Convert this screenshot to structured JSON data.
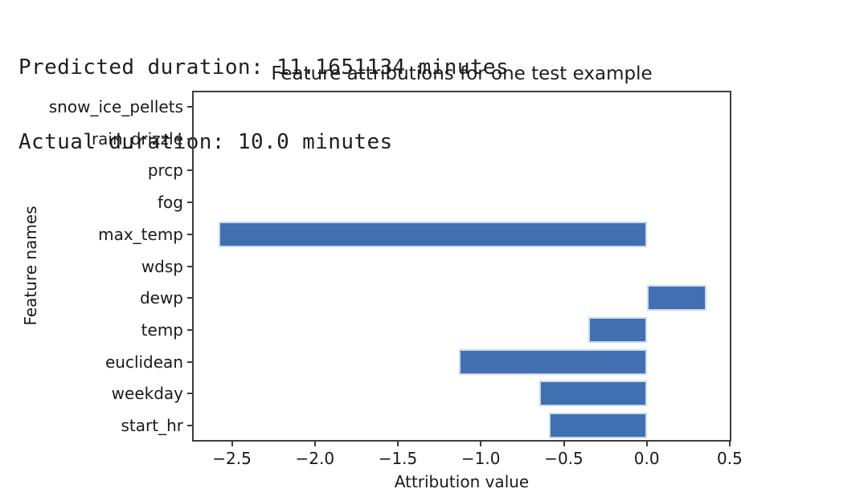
{
  "output_lines": [
    "Predicted duration: 11.1651134 minutes",
    "Actual duration: 10.0 minutes"
  ],
  "chart_data": {
    "type": "bar",
    "orientation": "horizontal",
    "title": "Feature attributions for one test example",
    "xlabel": "Attribution value",
    "ylabel": "Feature names",
    "categories": [
      "snow_ice_pellets",
      "rain_drizzle",
      "prcp",
      "fog",
      "max_temp",
      "wdsp",
      "dewp",
      "temp",
      "euclidean",
      "weekday",
      "start_hr"
    ],
    "values": [
      0,
      0,
      0,
      0,
      -2.58,
      0,
      0.36,
      -0.35,
      -1.13,
      -0.65,
      -0.59
    ],
    "xlim": [
      -2.74,
      0.51
    ],
    "x_ticks": [
      -2.5,
      -2.0,
      -1.5,
      -1.0,
      -0.5,
      0.0,
      0.5
    ],
    "x_tick_labels": [
      "−2.5",
      "−2.0",
      "−1.5",
      "−1.0",
      "−0.5",
      "0.0",
      "0.5"
    ],
    "grid": false,
    "legend": null,
    "bar_color": "#4070b0",
    "bar_edge_color": "#c9d9ee",
    "axis_color": "#3d3d3d",
    "text_color": "#1a1a1a",
    "background_color": "#ffffff"
  }
}
